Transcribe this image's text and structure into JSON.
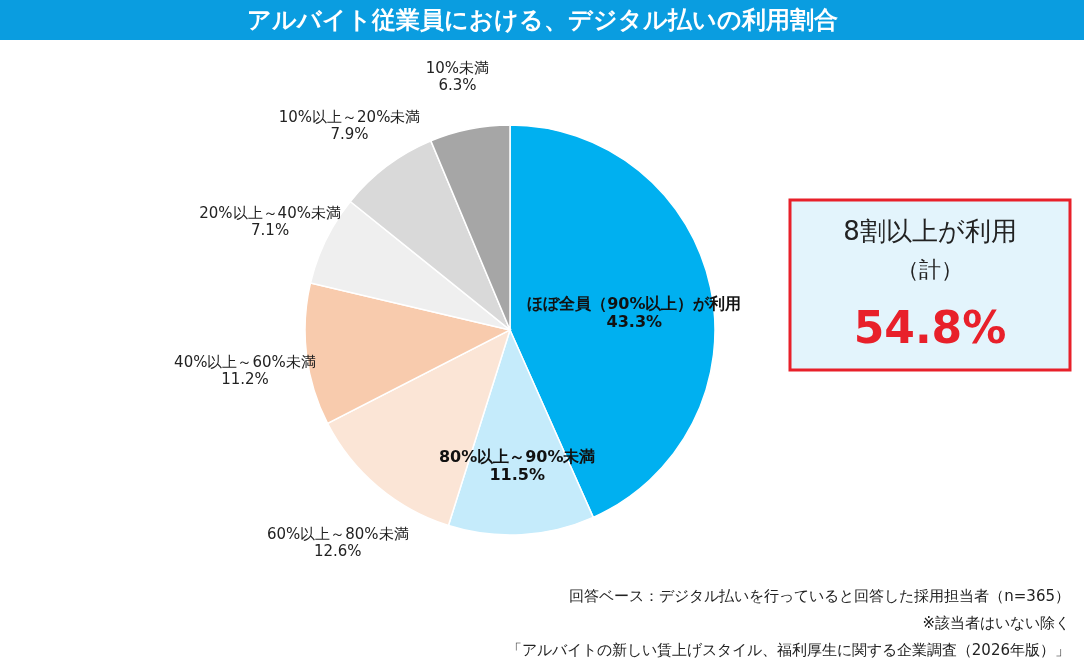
{
  "chart_data": {
    "type": "pie",
    "title": "アルバイト従業員における、デジタル払いの利用割合",
    "categories": [
      "ほぼ全員（90%以上）が利用",
      "80%以上～90%未満",
      "60%以上～80%未満",
      "40%以上～60%未満",
      "20%以上～40%未満",
      "10%以上～20%未満",
      "10%未満"
    ],
    "values": [
      43.3,
      11.5,
      12.6,
      11.2,
      7.1,
      7.9,
      6.3
    ],
    "value_labels": [
      "43.3%",
      "11.5%",
      "12.6%",
      "11.2%",
      "7.1%",
      "7.9%",
      "6.3%"
    ],
    "colors": [
      "#00b0f0",
      "#c5ebfb",
      "#fbe5d6",
      "#f8cbad",
      "#efefef",
      "#d9d9d9",
      "#a6a6a6"
    ],
    "annotations": [
      "8割以上が利用",
      "（計）",
      "54.8%",
      "回答ベース：デジタル払いを行っていると回答した採用担当者（n=365）",
      "※該当者はいない除く",
      "「アルバイトの新しい賃上げスタイル、福利厚生に関する企業調査（2026年版）」"
    ],
    "legend": false
  }
}
